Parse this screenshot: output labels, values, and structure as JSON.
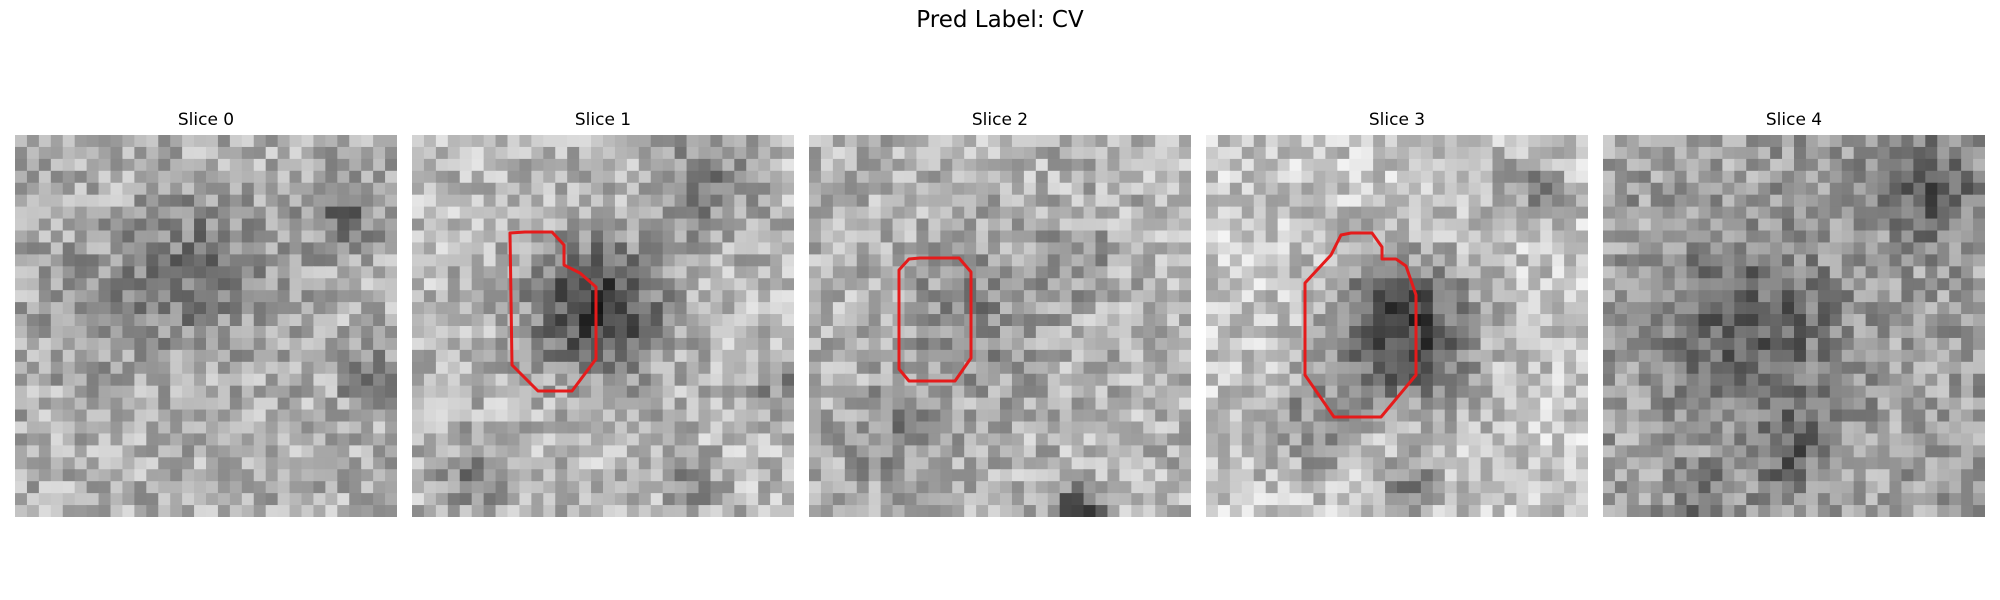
{
  "figure": {
    "title": "Pred Label: CV",
    "contour_color": "#e51b1b",
    "panels": [
      {
        "title": "Slice 0",
        "has_contour": false
      },
      {
        "title": "Slice 1",
        "has_contour": true
      },
      {
        "title": "Slice 2",
        "has_contour": true
      },
      {
        "title": "Slice 3",
        "has_contour": true
      },
      {
        "title": "Slice 4",
        "has_contour": false
      }
    ]
  }
}
